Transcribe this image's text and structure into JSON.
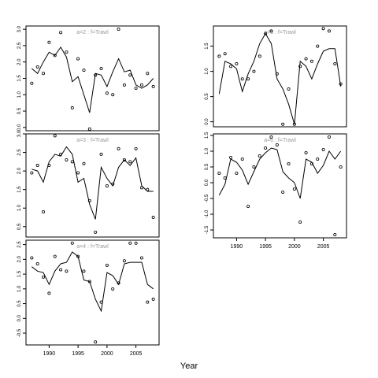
{
  "chart_data": [
    {
      "type": "scatter",
      "title": "a=2  :  f=Trawl",
      "xlim": [
        1986,
        2009
      ],
      "ylim": [
        -0.1,
        3.1
      ],
      "xticks": [],
      "yticks": [
        0.0,
        0.5,
        1.0,
        1.5,
        2.0,
        2.5,
        3.0
      ],
      "series": [
        {
          "kind": "points",
          "x": [
            1987,
            1988,
            1989,
            1990,
            1991,
            1992,
            1993,
            1994,
            1995,
            1996,
            1997,
            1998,
            1999,
            2000,
            2001,
            2002,
            2003,
            2004,
            2005,
            2006,
            2007,
            2008
          ],
          "y": [
            1.35,
            1.85,
            1.65,
            2.6,
            2.2,
            2.9,
            2.3,
            0.6,
            2.1,
            1.75,
            -0.05,
            1.6,
            1.8,
            1.05,
            1.0,
            3.0,
            1.3,
            1.6,
            1.2,
            1.3,
            1.65,
            1.25
          ]
        },
        {
          "kind": "line",
          "x": [
            1987,
            1988,
            1989,
            1990,
            1991,
            1992,
            1993,
            1994,
            1995,
            1996,
            1997,
            1998,
            1999,
            2000,
            2001,
            2002,
            2003,
            2004,
            2005,
            2006,
            2007,
            2008
          ],
          "y": [
            1.8,
            1.65,
            2.0,
            2.3,
            2.2,
            2.45,
            2.15,
            1.4,
            1.55,
            1.0,
            0.45,
            1.65,
            1.6,
            1.25,
            1.7,
            2.1,
            1.7,
            1.75,
            1.3,
            1.2,
            1.3,
            1.5
          ]
        }
      ]
    },
    {
      "type": "scatter",
      "title": "a=3  :  f=Trawl",
      "xlim": [
        1986,
        2009
      ],
      "ylim": [
        0.22,
        3.0
      ],
      "xticks": [],
      "yticks": [
        0.5,
        1.0,
        1.5,
        2.0,
        2.5,
        3.0
      ],
      "series": [
        {
          "kind": "points",
          "x": [
            1987,
            1988,
            1989,
            1990,
            1991,
            1992,
            1993,
            1994,
            1995,
            1996,
            1997,
            1998,
            1999,
            2000,
            2001,
            2002,
            2003,
            2004,
            2005,
            2006,
            2007,
            2008
          ],
          "y": [
            1.95,
            2.15,
            0.9,
            2.15,
            2.95,
            2.45,
            2.3,
            2.25,
            1.95,
            2.2,
            1.2,
            0.35,
            2.45,
            1.6,
            1.65,
            2.6,
            2.3,
            2.25,
            2.6,
            1.55,
            1.5,
            0.75
          ]
        },
        {
          "kind": "line",
          "x": [
            1987,
            1988,
            1989,
            1990,
            1991,
            1992,
            1993,
            1994,
            1995,
            1996,
            1997,
            1998,
            1999,
            2000,
            2001,
            2002,
            2003,
            2004,
            2005,
            2006,
            2007,
            2008
          ],
          "y": [
            2.05,
            2.0,
            1.7,
            2.25,
            2.45,
            2.4,
            2.65,
            2.45,
            1.7,
            1.8,
            1.1,
            0.7,
            2.1,
            1.8,
            1.6,
            2.1,
            2.3,
            2.15,
            2.35,
            1.6,
            1.45,
            1.45
          ]
        }
      ]
    },
    {
      "type": "scatter",
      "title": "a=4  :  f=Trawl",
      "xlim": [
        1986,
        2009
      ],
      "ylim": [
        -0.9,
        2.65
      ],
      "xlabel": "Year",
      "xticks": [
        1990,
        1995,
        2000,
        2005
      ],
      "yticks": [
        -0.5,
        0.0,
        0.5,
        1.0,
        1.5,
        2.0,
        2.5
      ],
      "series": [
        {
          "kind": "points",
          "x": [
            1987,
            1988,
            1989,
            1990,
            1991,
            1992,
            1993,
            1994,
            1995,
            1996,
            1997,
            1998,
            1999,
            2000,
            2001,
            2002,
            2003,
            2004,
            2005,
            2006,
            2007,
            2008
          ],
          "y": [
            2.05,
            1.85,
            1.4,
            0.85,
            2.1,
            1.65,
            1.6,
            2.55,
            2.1,
            1.6,
            1.25,
            -0.8,
            0.55,
            1.8,
            1.0,
            1.2,
            1.95,
            2.55,
            2.55,
            2.05,
            0.55,
            0.65
          ]
        },
        {
          "kind": "line",
          "x": [
            1987,
            1988,
            1989,
            1990,
            1991,
            1992,
            1993,
            1994,
            1995,
            1996,
            1997,
            1998,
            1999,
            2000,
            2001,
            2002,
            2003,
            2004,
            2005,
            2006,
            2007,
            2008
          ],
          "y": [
            1.75,
            1.6,
            1.55,
            1.15,
            1.6,
            1.85,
            1.9,
            2.25,
            2.1,
            1.3,
            1.25,
            0.65,
            0.25,
            1.55,
            1.45,
            1.15,
            1.85,
            1.9,
            1.9,
            1.9,
            1.15,
            1.0
          ]
        }
      ]
    },
    {
      "type": "scatter",
      "title": "a=5  :  f=Trawl",
      "xlim": [
        1986,
        2009
      ],
      "ylim": [
        -0.1,
        1.9
      ],
      "xticks": [],
      "yticks": [
        0.0,
        0.5,
        1.0,
        1.5
      ],
      "series": [
        {
          "kind": "points",
          "x": [
            1987,
            1988,
            1989,
            1990,
            1991,
            1992,
            1993,
            1994,
            1995,
            1996,
            1997,
            1998,
            1999,
            2000,
            2001,
            2002,
            2003,
            2004,
            2005,
            2006,
            2007,
            2008
          ],
          "y": [
            1.3,
            1.35,
            1.1,
            1.15,
            0.85,
            0.85,
            1.0,
            1.3,
            1.75,
            1.8,
            0.95,
            -0.05,
            0.65,
            -0.05,
            1.1,
            1.25,
            1.2,
            1.5,
            1.85,
            1.8,
            1.15,
            0.75
          ]
        },
        {
          "kind": "line",
          "x": [
            1987,
            1988,
            1989,
            1990,
            1991,
            1992,
            1993,
            1994,
            1995,
            1996,
            1997,
            1998,
            1999,
            2000,
            2001,
            2002,
            2003,
            2004,
            2005,
            2006,
            2007,
            2008
          ],
          "y": [
            0.55,
            1.2,
            1.15,
            1.05,
            0.6,
            0.95,
            1.2,
            1.55,
            1.75,
            1.55,
            0.85,
            0.65,
            0.35,
            -0.05,
            1.2,
            1.1,
            0.85,
            1.15,
            1.4,
            1.45,
            1.45,
            0.7
          ]
        }
      ]
    },
    {
      "type": "scatter",
      "title": "a=6  :  f=Trawl",
      "xlim": [
        1986,
        2009
      ],
      "ylim": [
        -1.75,
        1.55
      ],
      "xlabel": "Year",
      "xticks": [
        1990,
        1995,
        2000,
        2005
      ],
      "yticks": [
        -1.5,
        -1.0,
        -0.5,
        0.0,
        0.5,
        1.0,
        1.5
      ],
      "series": [
        {
          "kind": "points",
          "x": [
            1987,
            1988,
            1989,
            1990,
            1991,
            1992,
            1993,
            1994,
            1995,
            1996,
            1997,
            1998,
            1999,
            2000,
            2001,
            2002,
            2003,
            2004,
            2005,
            2006,
            2007,
            2008
          ],
          "y": [
            0.3,
            0.15,
            0.8,
            0.3,
            0.75,
            -0.75,
            0.5,
            0.85,
            1.1,
            1.45,
            1.2,
            -0.3,
            0.6,
            -0.2,
            -1.25,
            0.95,
            0.6,
            0.75,
            1.05,
            1.45,
            -1.65,
            0.5
          ]
        },
        {
          "kind": "line",
          "x": [
            1987,
            1988,
            1989,
            1990,
            1991,
            1992,
            1993,
            1994,
            1995,
            1996,
            1997,
            1998,
            1999,
            2000,
            2001,
            2002,
            2003,
            2004,
            2005,
            2006,
            2007,
            2008
          ],
          "y": [
            -0.4,
            -0.05,
            0.75,
            0.65,
            0.4,
            -0.05,
            0.35,
            0.75,
            0.95,
            1.1,
            1.05,
            0.35,
            0.15,
            0.0,
            -0.5,
            0.75,
            0.65,
            0.3,
            0.55,
            1.0,
            0.75,
            1.0
          ]
        }
      ]
    }
  ],
  "figure": {
    "xlabel": "Year",
    "title_color": "#999999"
  }
}
